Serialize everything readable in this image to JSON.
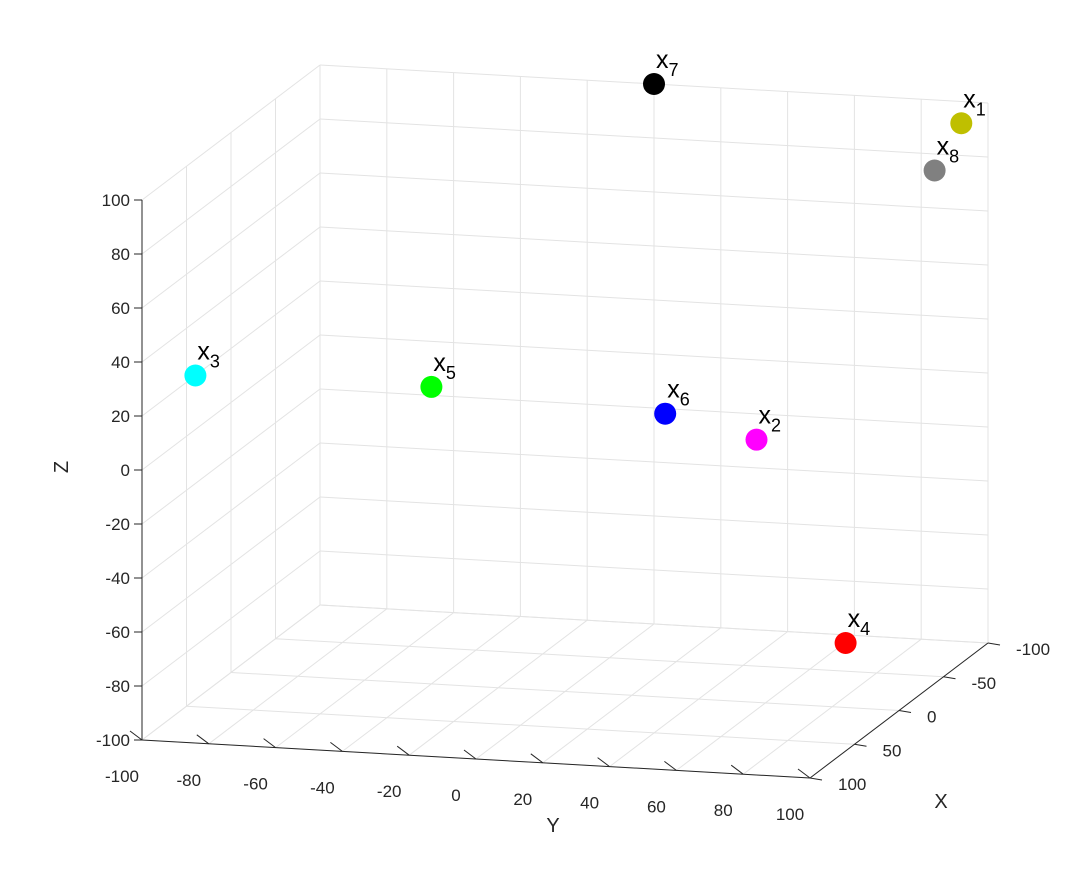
{
  "chart_data": {
    "type": "scatter",
    "title": "",
    "xlabel": "X",
    "ylabel": "Y",
    "zlabel": "Z",
    "xlim": [
      -100,
      100
    ],
    "ylim": [
      -100,
      100
    ],
    "zlim": [
      -100,
      100
    ],
    "grid": true,
    "x_ticks": [
      "-100",
      "-50",
      "0",
      "50",
      "100"
    ],
    "y_ticks": [
      "-100",
      "-80",
      "-60",
      "-40",
      "-20",
      "0",
      "20",
      "40",
      "60",
      "80",
      "100"
    ],
    "z_ticks": [
      "-100",
      "-80",
      "-60",
      "-40",
      "-20",
      "0",
      "20",
      "40",
      "60",
      "80",
      "100"
    ],
    "points": [
      {
        "label": "x",
        "sub": "1",
        "x": -70,
        "y": 100,
        "z": 100,
        "color": "#bfbf00"
      },
      {
        "label": "x",
        "sub": "2",
        "x": 10,
        "y": 60,
        "z": 0,
        "color": "#ff00ff"
      },
      {
        "label": "x",
        "sub": "3",
        "x": 40,
        "y": -100,
        "z": 20,
        "color": "#00ffff"
      },
      {
        "label": "x",
        "sub": "4",
        "x": 60,
        "y": 100,
        "z": -60,
        "color": "#ff0000"
      },
      {
        "label": "x",
        "sub": "5",
        "x": 0,
        "y": -40,
        "z": 10,
        "color": "#00ff00"
      },
      {
        "label": "x",
        "sub": "6",
        "x": 0,
        "y": 30,
        "z": 5,
        "color": "#0000ff"
      },
      {
        "label": "x",
        "sub": "7",
        "x": -100,
        "y": 0,
        "z": 100,
        "color": "#000000"
      },
      {
        "label": "x",
        "sub": "8",
        "x": -40,
        "y": 100,
        "z": 90,
        "color": "#808080"
      }
    ]
  }
}
